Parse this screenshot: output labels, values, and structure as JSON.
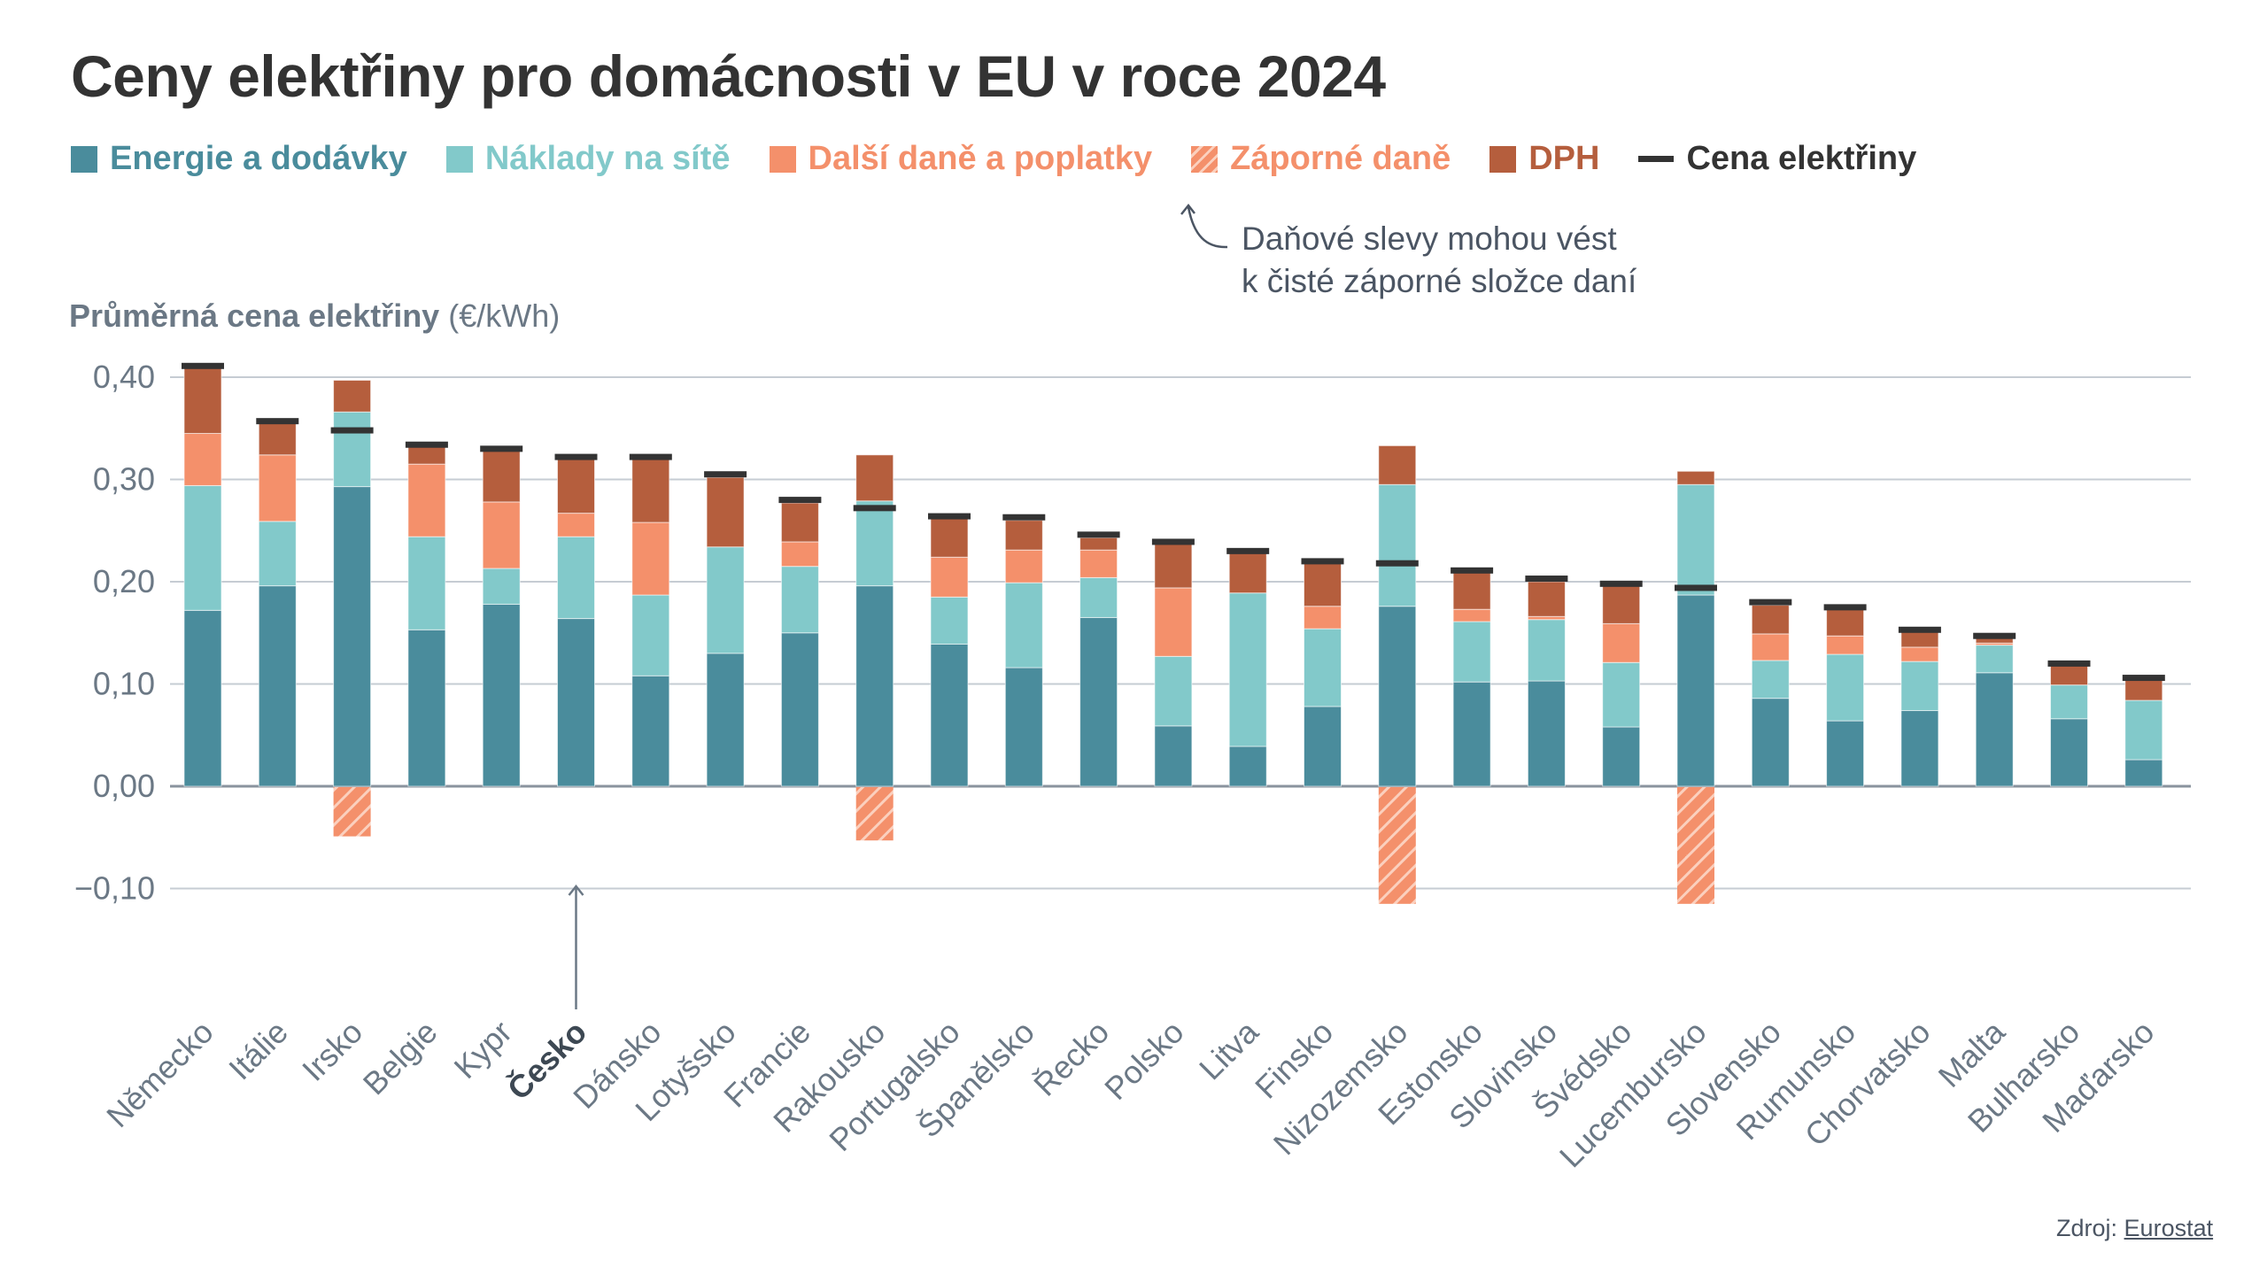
{
  "title": "Ceny elektřiny pro domácnosti v EU v roce 2024",
  "legend": [
    {
      "key": "energy",
      "label": "Energie a dodávky",
      "color": "#4a8c9c",
      "type": "square"
    },
    {
      "key": "network",
      "label": "Náklady na sítě",
      "color": "#82c9ca",
      "type": "square"
    },
    {
      "key": "other_taxes",
      "label": "Další daně a poplatky",
      "color": "#f4906b",
      "type": "square"
    },
    {
      "key": "negative_taxes",
      "label": "Záporné daně",
      "color": "#f4906b",
      "type": "hatch"
    },
    {
      "key": "vat",
      "label": "DPH",
      "color": "#b55e3d",
      "type": "square"
    },
    {
      "key": "price",
      "label": "Cena elektřiny",
      "color": "#333333",
      "type": "line"
    }
  ],
  "annotation": {
    "line1": "Daňové slevy mohou vést",
    "line2": "k čisté záporné složce daní"
  },
  "y_axis_title": {
    "bold": "Průměrná cena elektřiny",
    "unit": "(€/kWh)"
  },
  "source": {
    "label": "Zdroj:",
    "link_text": "Eurostat"
  },
  "highlight_category": "Česko",
  "chart_data": {
    "type": "bar",
    "stacked": true,
    "title": "Ceny elektřiny pro domácnosti v EU v roce 2024",
    "xlabel": "",
    "ylabel": "Průměrná cena elektřiny (€/kWh)",
    "ylim": [
      -0.1,
      0.4
    ],
    "yticks": [
      -0.1,
      0.0,
      0.1,
      0.2,
      0.3,
      0.4
    ],
    "ytick_labels": [
      "−0,10",
      "0,00",
      "0,10",
      "0,20",
      "0,30",
      "0,40"
    ],
    "grid": true,
    "legend_position": "top",
    "categories": [
      "Německo",
      "Itálie",
      "Irsko",
      "Belgie",
      "Kypr",
      "Česko",
      "Dánsko",
      "Lotyšsko",
      "Francie",
      "Rakousko",
      "Portugalsko",
      "Španělsko",
      "Řecko",
      "Polsko",
      "Litva",
      "Finsko",
      "Nizozemsko",
      "Estonsko",
      "Slovinsko",
      "Švédsko",
      "Lucembursko",
      "Slovensko",
      "Rumunsko",
      "Chorvatsko",
      "Malta",
      "Bulharsko",
      "Maďarsko"
    ],
    "series": [
      {
        "name": "Energie a dodávky",
        "values": [
          0.172,
          0.196,
          0.293,
          0.153,
          0.178,
          0.164,
          0.108,
          0.13,
          0.15,
          0.196,
          0.139,
          0.116,
          0.165,
          0.059,
          0.039,
          0.078,
          0.176,
          0.102,
          0.103,
          0.058,
          0.187,
          0.086,
          0.064,
          0.074,
          0.111,
          0.066,
          0.026
        ]
      },
      {
        "name": "Náklady na sítě",
        "values": [
          0.122,
          0.063,
          0.073,
          0.091,
          0.035,
          0.08,
          0.079,
          0.104,
          0.065,
          0.083,
          0.046,
          0.083,
          0.039,
          0.068,
          0.15,
          0.076,
          0.119,
          0.059,
          0.06,
          0.063,
          0.108,
          0.037,
          0.065,
          0.048,
          0.027,
          0.033,
          0.058
        ]
      },
      {
        "name": "Další daně a poplatky",
        "values": [
          0.051,
          0.065,
          0.0,
          0.071,
          0.065,
          0.023,
          0.071,
          0.0,
          0.024,
          0.0,
          0.039,
          0.032,
          0.027,
          0.067,
          0.0,
          0.022,
          0.0,
          0.012,
          0.003,
          0.038,
          0.0,
          0.026,
          0.018,
          0.014,
          0.002,
          0.0,
          0.0
        ]
      },
      {
        "name": "Záporné daně",
        "values": [
          0,
          0,
          -0.049,
          0,
          0,
          0,
          0,
          0,
          0,
          -0.053,
          0,
          0,
          0,
          0,
          0,
          0,
          -0.115,
          0,
          0,
          0,
          -0.115,
          0,
          0,
          0,
          0,
          0,
          0
        ]
      },
      {
        "name": "DPH",
        "values": [
          0.064,
          0.031,
          0.031,
          0.017,
          0.05,
          0.053,
          0.062,
          0.068,
          0.038,
          0.045,
          0.038,
          0.029,
          0.012,
          0.043,
          0.039,
          0.042,
          0.038,
          0.036,
          0.034,
          0.037,
          0.013,
          0.028,
          0.026,
          0.015,
          0.005,
          0.021,
          0.02
        ]
      }
    ],
    "price_line": {
      "name": "Cena elektřiny",
      "values": [
        0.411,
        0.357,
        0.348,
        0.334,
        0.33,
        0.322,
        0.322,
        0.305,
        0.28,
        0.272,
        0.264,
        0.263,
        0.246,
        0.239,
        0.23,
        0.22,
        0.218,
        0.211,
        0.203,
        0.198,
        0.194,
        0.18,
        0.175,
        0.153,
        0.147,
        0.12,
        0.106
      ]
    }
  }
}
